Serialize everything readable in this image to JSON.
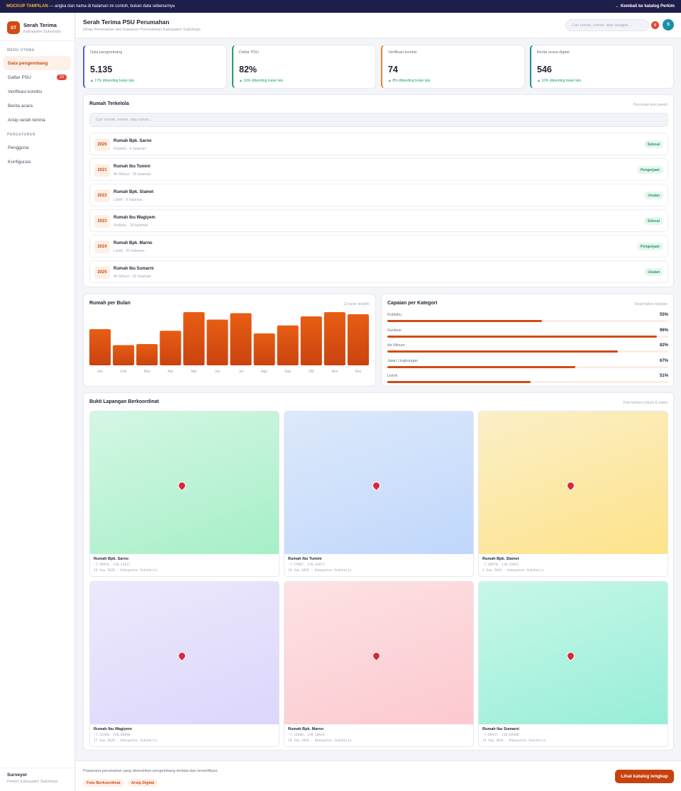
{
  "banner": {
    "tag": "MOCKUP TAMPILAN",
    "text": " — angka dan nama di halaman ini contoh, bukan data sebenarnya",
    "back": "← Kembali ke katalog Perkim"
  },
  "brand": {
    "initials": "ST",
    "name": "Serah Terima",
    "sub": "Kabupaten Sukoharjo"
  },
  "sidebar": {
    "section_main": "MENU UTAMA",
    "main_items": [
      {
        "label": "Data pengembang"
      },
      {
        "label": "Daftar PSU",
        "badge": "23"
      },
      {
        "label": "Verifikasi kondisi"
      },
      {
        "label": "Berita acara"
      },
      {
        "label": "Arsip serah terima"
      }
    ],
    "section_settings": "PENGATURAN",
    "settings_items": [
      {
        "label": "Pengguna"
      },
      {
        "label": "Konfigurasi"
      }
    ],
    "footer": {
      "role": "Surveyor",
      "org": "Perkim Kabupaten Sukoharjo"
    }
  },
  "header": {
    "title": "Serah Terima PSU Perumahan",
    "subtitle": "Dinas Perumahan dan Kawasan Permukiman Kabupaten Sukoharjo",
    "search_placeholder": "Cari rumah, nomor, atau tanggal...",
    "notif_count": "8",
    "avatar": "S"
  },
  "stats": [
    {
      "label": "Data pengembang",
      "value": "5.135",
      "trend": "▲ 17% dibanding bulan lalu",
      "accent": "#5b5fc7"
    },
    {
      "label": "Daftar PSU",
      "value": "82%",
      "trend": "▲ 16% dibanding bulan lalu",
      "accent": "#22a06b"
    },
    {
      "label": "Verifikasi kondisi",
      "value": "74",
      "trend": "▲ 8% dibanding bulan lalu",
      "accent": "#e0892a"
    },
    {
      "label": "Berita acara digital",
      "value": "546",
      "trend": "▲ 16% dibanding bulan lalu",
      "accent": "#1b8fa6"
    }
  ],
  "houses": {
    "title": "Rumah Terkelola",
    "hint": "Pencarian teks penuh",
    "search_placeholder": "Cari rumah, nomor, atau tahun...",
    "rows": [
      {
        "year": "2020",
        "name": "Rumah Bpk. Sarno",
        "meta": "Rutilahu · 6 halaman",
        "status": "Selesai"
      },
      {
        "year": "2021",
        "name": "Rumah Ibu Tumini",
        "meta": "Air Minum · 25 halaman",
        "status": "Pengerjaan"
      },
      {
        "year": "2022",
        "name": "Rumah Bpk. Slamet",
        "meta": "Listrik · 6 halaman",
        "status": "Usulan"
      },
      {
        "year": "2023",
        "name": "Rumah Ibu Wagiyem",
        "meta": "Rutilahu · 18 halaman",
        "status": "Selesai"
      },
      {
        "year": "2024",
        "name": "Rumah Bpk. Marno",
        "meta": "Listrik · 26 halaman",
        "status": "Pengerjaan"
      },
      {
        "year": "2025",
        "name": "Rumah Ibu Sumarni",
        "meta": "Air Minum · 62 halaman",
        "status": "Usulan"
      }
    ]
  },
  "monthly": {
    "title": "Rumah per Bulan",
    "hint": "12 bulan terakhir"
  },
  "categories": {
    "title": "Capaian per Kategori",
    "hint": "Target tahun berjalan"
  },
  "chart_data": [
    {
      "type": "bar",
      "title": "Rumah per Bulan",
      "categories": [
        "Jan",
        "Feb",
        "Mar",
        "Apr",
        "Mei",
        "Jun",
        "Jul",
        "Agu",
        "Sep",
        "Okt",
        "Nov",
        "Des"
      ],
      "values": [
        68,
        38,
        40,
        65,
        100,
        86,
        98,
        60,
        75,
        92,
        100,
        96
      ],
      "ylim": [
        0,
        100
      ],
      "grid": false
    },
    {
      "type": "bar",
      "title": "Capaian per Kategori",
      "categories": [
        "Rutilahu",
        "Sanitasi",
        "Air Minum",
        "Jalan Lingkungan",
        "Listrik"
      ],
      "values": [
        55,
        96,
        82,
        67,
        51
      ],
      "labels": [
        "55%",
        "96%",
        "82%",
        "67%",
        "51%"
      ],
      "ylim": [
        0,
        100
      ]
    }
  ],
  "evidence": {
    "title": "Bukti Lapangan Berkoordinat",
    "hint": "Foto terkunci lokasi & waktu",
    "photos": [
      {
        "name": "Rumah Bpk. Sarno",
        "coords": "-7,56954, 110,31617",
        "date": "24 Sep 2026 · Kabupaten Sukoharjo",
        "color_top": "#d4f7e4",
        "color_bottom": "#a6efc7"
      },
      {
        "name": "Rumah Ibu Tumini",
        "coords": "-7,57087, 110,32671",
        "date": "19 Sep 2026 · Kabupaten Sukoharjo",
        "color_top": "#dde9fb",
        "color_bottom": "#c0d7fb"
      },
      {
        "name": "Rumah Bpk. Slamet",
        "coords": "-7,60570, 110,25012",
        "date": "3 Sep 2026 · Kabupaten Sukoharjo",
        "color_top": "#fcefc7",
        "color_bottom": "#fde38a"
      },
      {
        "name": "Rumah Ibu Wagiyem",
        "coords": "-7,32200, 110,80690",
        "date": "17 Sep 2026 · Kabupaten Sukoharjo",
        "color_top": "#ece9fd",
        "color_bottom": "#dcd6fb"
      },
      {
        "name": "Rumah Bpk. Marno",
        "coords": "-7,13600, 110,10614",
        "date": "20 Sep 2026 · Kabupaten Sukoharjo",
        "color_top": "#fde2e4",
        "color_bottom": "#fcc9cf"
      },
      {
        "name": "Rumah Ibu Sumarni",
        "coords": "-7,09437, 110,69308",
        "date": "24 Sep 2026 · Kabupaten Sukoharjo",
        "color_top": "#c8f7ea",
        "color_bottom": "#97eed7"
      }
    ]
  },
  "footer": {
    "text": "Prasarana perumahan yang diserahkan pengembang terdata dan terverifikasi.",
    "chips": [
      "Foto Berkoordinat",
      "Arsip Digital"
    ],
    "cta": "Lihat katalog lengkap"
  }
}
